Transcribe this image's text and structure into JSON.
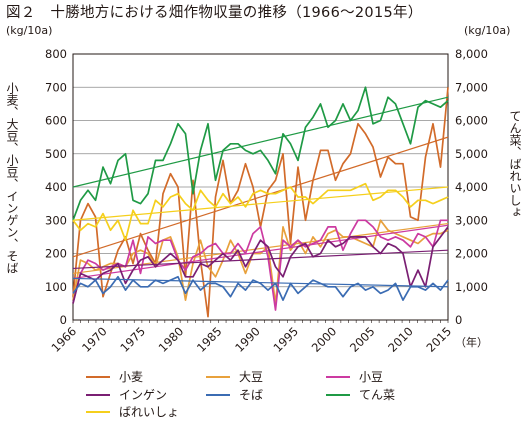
{
  "chart_data": {
    "type": "line",
    "title": "図２　十勝地方における畑作物収量の推移（1966～2015年）",
    "left_unit": "(kg/10a)",
    "right_unit": "(kg/10a)",
    "left_axis_label": "小麦、大豆、小豆、インゲン、そば",
    "right_axis_label": "てん菜、ばれいしょ",
    "x_unit": "（年）",
    "x_ticks": [
      "1966",
      "1970",
      "1975",
      "1980",
      "1985",
      "1990",
      "1995",
      "2000",
      "2005",
      "2010",
      "2015"
    ],
    "y_left_ticks": [
      "0",
      "100",
      "200",
      "300",
      "400",
      "500",
      "600",
      "700",
      "800"
    ],
    "y_right_ticks": [
      "0",
      "1,000",
      "2,000",
      "3,000",
      "4,000",
      "5,000",
      "6,000",
      "7,000",
      "8,000"
    ],
    "x_range": [
      1966,
      2015
    ],
    "y_left_range": [
      0,
      800
    ],
    "y_right_range": [
      0,
      8000
    ],
    "grid": true,
    "legend_position": "bottom",
    "series": [
      {
        "name": "小麦",
        "axis": "left",
        "color": "#d26b2a",
        "values": [
          70,
          300,
          350,
          310,
          70,
          140,
          210,
          250,
          170,
          260,
          210,
          170,
          380,
          440,
          400,
          130,
          420,
          180,
          10,
          370,
          480,
          350,
          390,
          470,
          400,
          280,
          390,
          420,
          500,
          230,
          460,
          300,
          420,
          510,
          510,
          420,
          470,
          500,
          590,
          560,
          520,
          430,
          490,
          470,
          470,
          310,
          300,
          490,
          590,
          460,
          700
        ],
        "trend": [
          190,
          550
        ]
      },
      {
        "name": "大豆",
        "axis": "left",
        "color": "#e8a13c",
        "values": [
          60,
          180,
          170,
          150,
          160,
          170,
          170,
          160,
          200,
          210,
          200,
          160,
          240,
          250,
          190,
          60,
          170,
          240,
          160,
          130,
          180,
          240,
          200,
          140,
          200,
          200,
          220,
          50,
          280,
          210,
          240,
          200,
          250,
          220,
          260,
          270,
          250,
          250,
          240,
          230,
          220,
          300,
          270,
          260,
          250,
          240,
          230,
          250,
          260,
          260,
          270
        ],
        "trend": [
          140,
          290
        ]
      },
      {
        "name": "小豆",
        "axis": "left",
        "color": "#cc3aa1",
        "values": [
          50,
          140,
          180,
          170,
          150,
          160,
          170,
          160,
          240,
          140,
          250,
          230,
          240,
          240,
          180,
          150,
          190,
          200,
          220,
          230,
          200,
          200,
          230,
          200,
          260,
          280,
          190,
          30,
          240,
          220,
          240,
          220,
          230,
          240,
          280,
          280,
          210,
          260,
          300,
          300,
          280,
          250,
          240,
          250,
          240,
          220,
          260,
          250,
          220,
          300,
          300
        ],
        "trend": [
          125,
          285
        ]
      },
      {
        "name": "インゲン",
        "axis": "left",
        "color": "#7a1f73",
        "values": [
          50,
          140,
          130,
          120,
          140,
          150,
          170,
          110,
          150,
          180,
          190,
          160,
          180,
          200,
          180,
          130,
          130,
          170,
          160,
          180,
          200,
          180,
          210,
          160,
          200,
          240,
          220,
          160,
          130,
          190,
          220,
          230,
          190,
          200,
          240,
          220,
          230,
          250,
          250,
          250,
          220,
          200,
          230,
          220,
          200,
          100,
          150,
          100,
          220,
          250,
          280
        ],
        "trend": [
          155,
          210
        ]
      },
      {
        "name": "そば",
        "axis": "left",
        "color": "#3b6cb3",
        "values": [
          80,
          110,
          100,
          120,
          80,
          100,
          130,
          90,
          120,
          100,
          100,
          120,
          110,
          120,
          130,
          80,
          120,
          90,
          110,
          110,
          100,
          70,
          110,
          90,
          120,
          110,
          90,
          110,
          60,
          110,
          80,
          100,
          120,
          110,
          100,
          100,
          70,
          100,
          110,
          90,
          100,
          80,
          90,
          110,
          60,
          100,
          100,
          90,
          110,
          90,
          120
        ],
        "trend": [
          125,
          100
        ]
      },
      {
        "name": "てん菜",
        "axis": "right",
        "color": "#1f9a45",
        "values": [
          3000,
          3600,
          3900,
          3600,
          4600,
          4100,
          4800,
          5000,
          3600,
          3500,
          3800,
          4800,
          4800,
          5300,
          5900,
          5600,
          3800,
          5100,
          5900,
          4200,
          5100,
          5300,
          5300,
          5100,
          5000,
          5100,
          4800,
          4400,
          5600,
          5300,
          4800,
          5800,
          6100,
          6500,
          5800,
          6000,
          6500,
          6000,
          6300,
          7000,
          5900,
          6000,
          6700,
          6500,
          5900,
          5300,
          6400,
          6600,
          6500,
          6400,
          6600
        ],
        "trend": [
          4000,
          6700
        ]
      },
      {
        "name": "ばれいしょ",
        "axis": "right",
        "color": "#f5cf1c",
        "values": [
          3000,
          2700,
          2900,
          2800,
          3200,
          2700,
          3000,
          2400,
          3300,
          2900,
          2900,
          3600,
          3400,
          3700,
          3800,
          3500,
          3300,
          3900,
          3600,
          3400,
          3800,
          3500,
          3700,
          3400,
          3800,
          3900,
          3800,
          3800,
          3900,
          4000,
          3700,
          3700,
          3500,
          3700,
          3900,
          3900,
          3900,
          3900,
          4000,
          4100,
          3600,
          3700,
          3900,
          3900,
          3700,
          3400,
          3600,
          3600,
          3500,
          3600,
          3700
        ],
        "trend": [
          3000,
          4000
        ]
      }
    ]
  }
}
